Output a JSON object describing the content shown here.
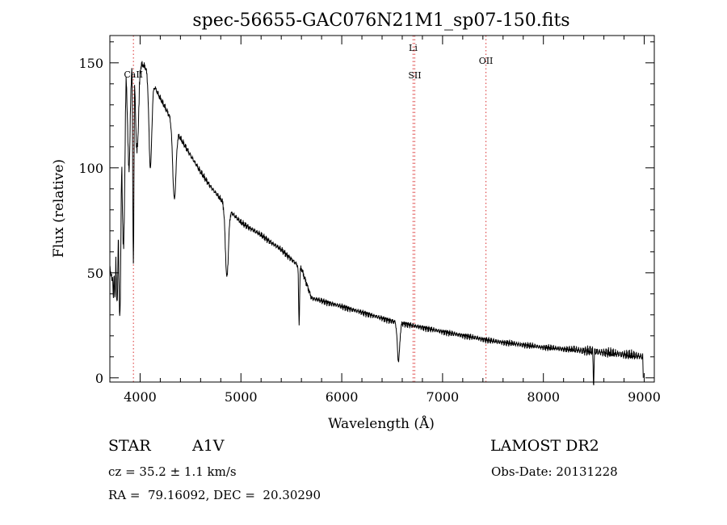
{
  "chart_data": {
    "type": "line",
    "title": "spec-56655-GAC076N21M1_sp07-150.fits",
    "xlabel": "Wavelength (Å)",
    "ylabel": "Flux (relative)",
    "xlim": [
      3700,
      9100
    ],
    "ylim": [
      -2,
      163
    ],
    "xticks": [
      4000,
      5000,
      6000,
      7000,
      8000,
      9000
    ],
    "yticks": [
      0,
      50,
      100,
      150
    ],
    "grid": false,
    "line_color": "#000000",
    "marker_color": "#e05050",
    "series": [
      {
        "continuum": [
          [
            3700,
            50
          ],
          [
            3750,
            90
          ],
          [
            3800,
            120
          ],
          [
            3850,
            150
          ],
          [
            3900,
            158
          ],
          [
            3950,
            150
          ],
          [
            4000,
            150
          ],
          [
            4050,
            148
          ],
          [
            4100,
            143
          ],
          [
            4200,
            133
          ],
          [
            4300,
            124
          ],
          [
            4400,
            114
          ],
          [
            4500,
            106
          ],
          [
            4600,
            98
          ],
          [
            4700,
            91
          ],
          [
            4800,
            85
          ],
          [
            4900,
            79
          ],
          [
            5000,
            74
          ],
          [
            5200,
            68
          ],
          [
            5400,
            61
          ],
          [
            5600,
            52
          ],
          [
            5700,
            38
          ],
          [
            6000,
            34
          ],
          [
            6500,
            27
          ],
          [
            7000,
            22
          ],
          [
            7500,
            17.5
          ],
          [
            8000,
            14.5
          ],
          [
            8500,
            12.5
          ],
          [
            9000,
            10
          ]
        ],
        "lines": [
          [
            3704,
            60,
            9
          ],
          [
            3712,
            50,
            8
          ],
          [
            3722,
            45,
            8
          ],
          [
            3735,
            40,
            9
          ],
          [
            3750,
            38,
            10
          ],
          [
            3771,
            35,
            11
          ],
          [
            3798,
            30,
            12
          ],
          [
            3835,
            62,
            13
          ],
          [
            3889,
            100,
            14
          ],
          [
            3933,
            55,
            6
          ],
          [
            3970,
            108,
            15
          ],
          [
            4102,
            100,
            14
          ],
          [
            4340,
            85,
            16
          ],
          [
            4861,
            48,
            15
          ],
          [
            5577,
            26,
            5
          ],
          [
            6563,
            8,
            12
          ],
          [
            8498,
            -3,
            4
          ]
        ]
      }
    ],
    "markers": [
      {
        "x": 3934,
        "label": "CaII"
      },
      {
        "x": 6708,
        "label": "Li"
      },
      {
        "x": 6724,
        "label": "SII"
      },
      {
        "x": 7430,
        "label": "OII"
      }
    ]
  },
  "info": {
    "object_class": "STAR",
    "subclass": "A1V",
    "survey": "LAMOST DR2",
    "cz": "cz = 35.2 ± 1.1 km/s",
    "obs_date": "Obs-Date: 20131228",
    "coords": "RA =  79.16092, DEC =  20.30290"
  }
}
